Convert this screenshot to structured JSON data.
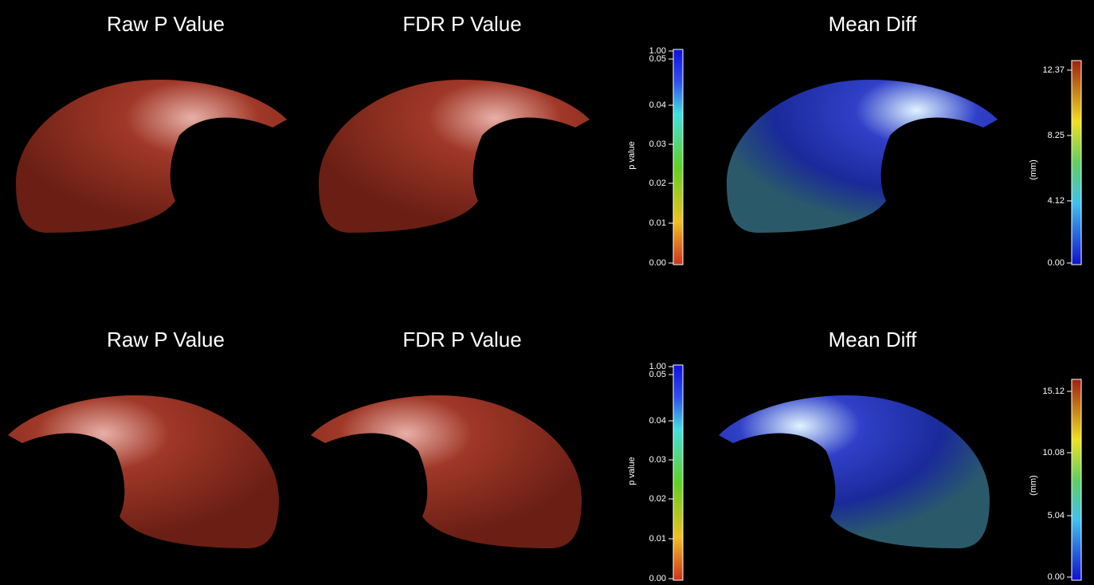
{
  "rows": [
    {
      "titles": [
        "Raw P Value",
        "FDR P Value",
        "Mean Diff"
      ],
      "p_colorbar": {
        "label": "p value",
        "ticks": [
          "1.00",
          "0.05",
          "0.04",
          "0.03",
          "0.02",
          "0.01",
          "0.00"
        ]
      },
      "mm_colorbar": {
        "label": "(mm)",
        "ticks": [
          "12.37",
          "8.25",
          "4.12",
          "0.00"
        ]
      }
    },
    {
      "titles": [
        "Raw P Value",
        "FDR P Value",
        "Mean Diff"
      ],
      "p_colorbar": {
        "label": "p value",
        "ticks": [
          "1.00",
          "0.05",
          "0.04",
          "0.03",
          "0.02",
          "0.01",
          "0.00"
        ]
      },
      "mm_colorbar": {
        "label": "(mm)",
        "ticks": [
          "15.12",
          "10.08",
          "5.04",
          "0.00"
        ]
      }
    }
  ]
}
